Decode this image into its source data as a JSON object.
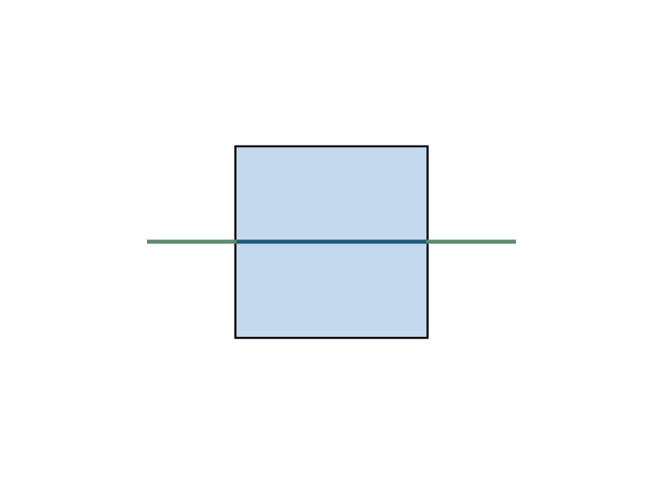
{
  "shapes": {
    "square": {
      "fill": "#c5d9ee",
      "stroke": "#000000"
    },
    "horizontal_line": {
      "stroke": "#5e8a6e"
    },
    "overlap_segment": {
      "stroke": "#1d5b78"
    }
  }
}
